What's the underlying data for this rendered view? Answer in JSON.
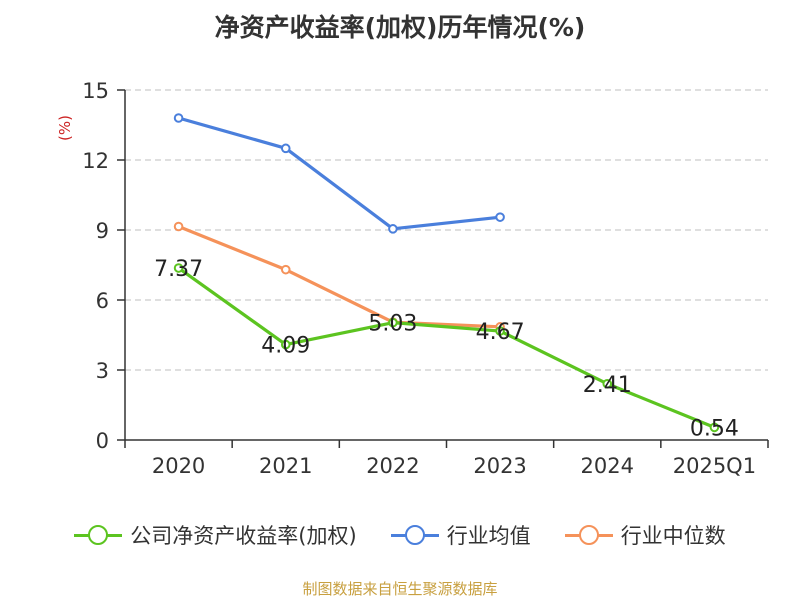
{
  "chart_data": {
    "type": "line",
    "title": "净资产收益率(加权)历年情况(%)",
    "ylabel": "(%)",
    "categories": [
      "2020",
      "2021",
      "2022",
      "2023",
      "2024",
      "2025Q1"
    ],
    "ylim": [
      0,
      15
    ],
    "yticks": [
      0,
      3,
      6,
      9,
      12,
      15
    ],
    "grid": "horizontal-dashed",
    "legend_position": "bottom",
    "series": [
      {
        "name": "公司净资产收益率(加权)",
        "color": "#5cc420",
        "values": [
          7.37,
          4.09,
          5.03,
          4.67,
          2.41,
          0.54
        ],
        "labels": [
          "7.37",
          "4.09",
          "5.03",
          "4.67",
          "2.41",
          "0.54"
        ]
      },
      {
        "name": "行业均值",
        "color": "#4a7fdc",
        "values": [
          13.8,
          12.5,
          9.05,
          9.55,
          null,
          null
        ]
      },
      {
        "name": "行业中位数",
        "color": "#f5925a",
        "values": [
          9.15,
          7.3,
          5.05,
          4.85,
          null,
          null
        ]
      }
    ]
  },
  "source": "制图数据来自恒生聚源数据库"
}
